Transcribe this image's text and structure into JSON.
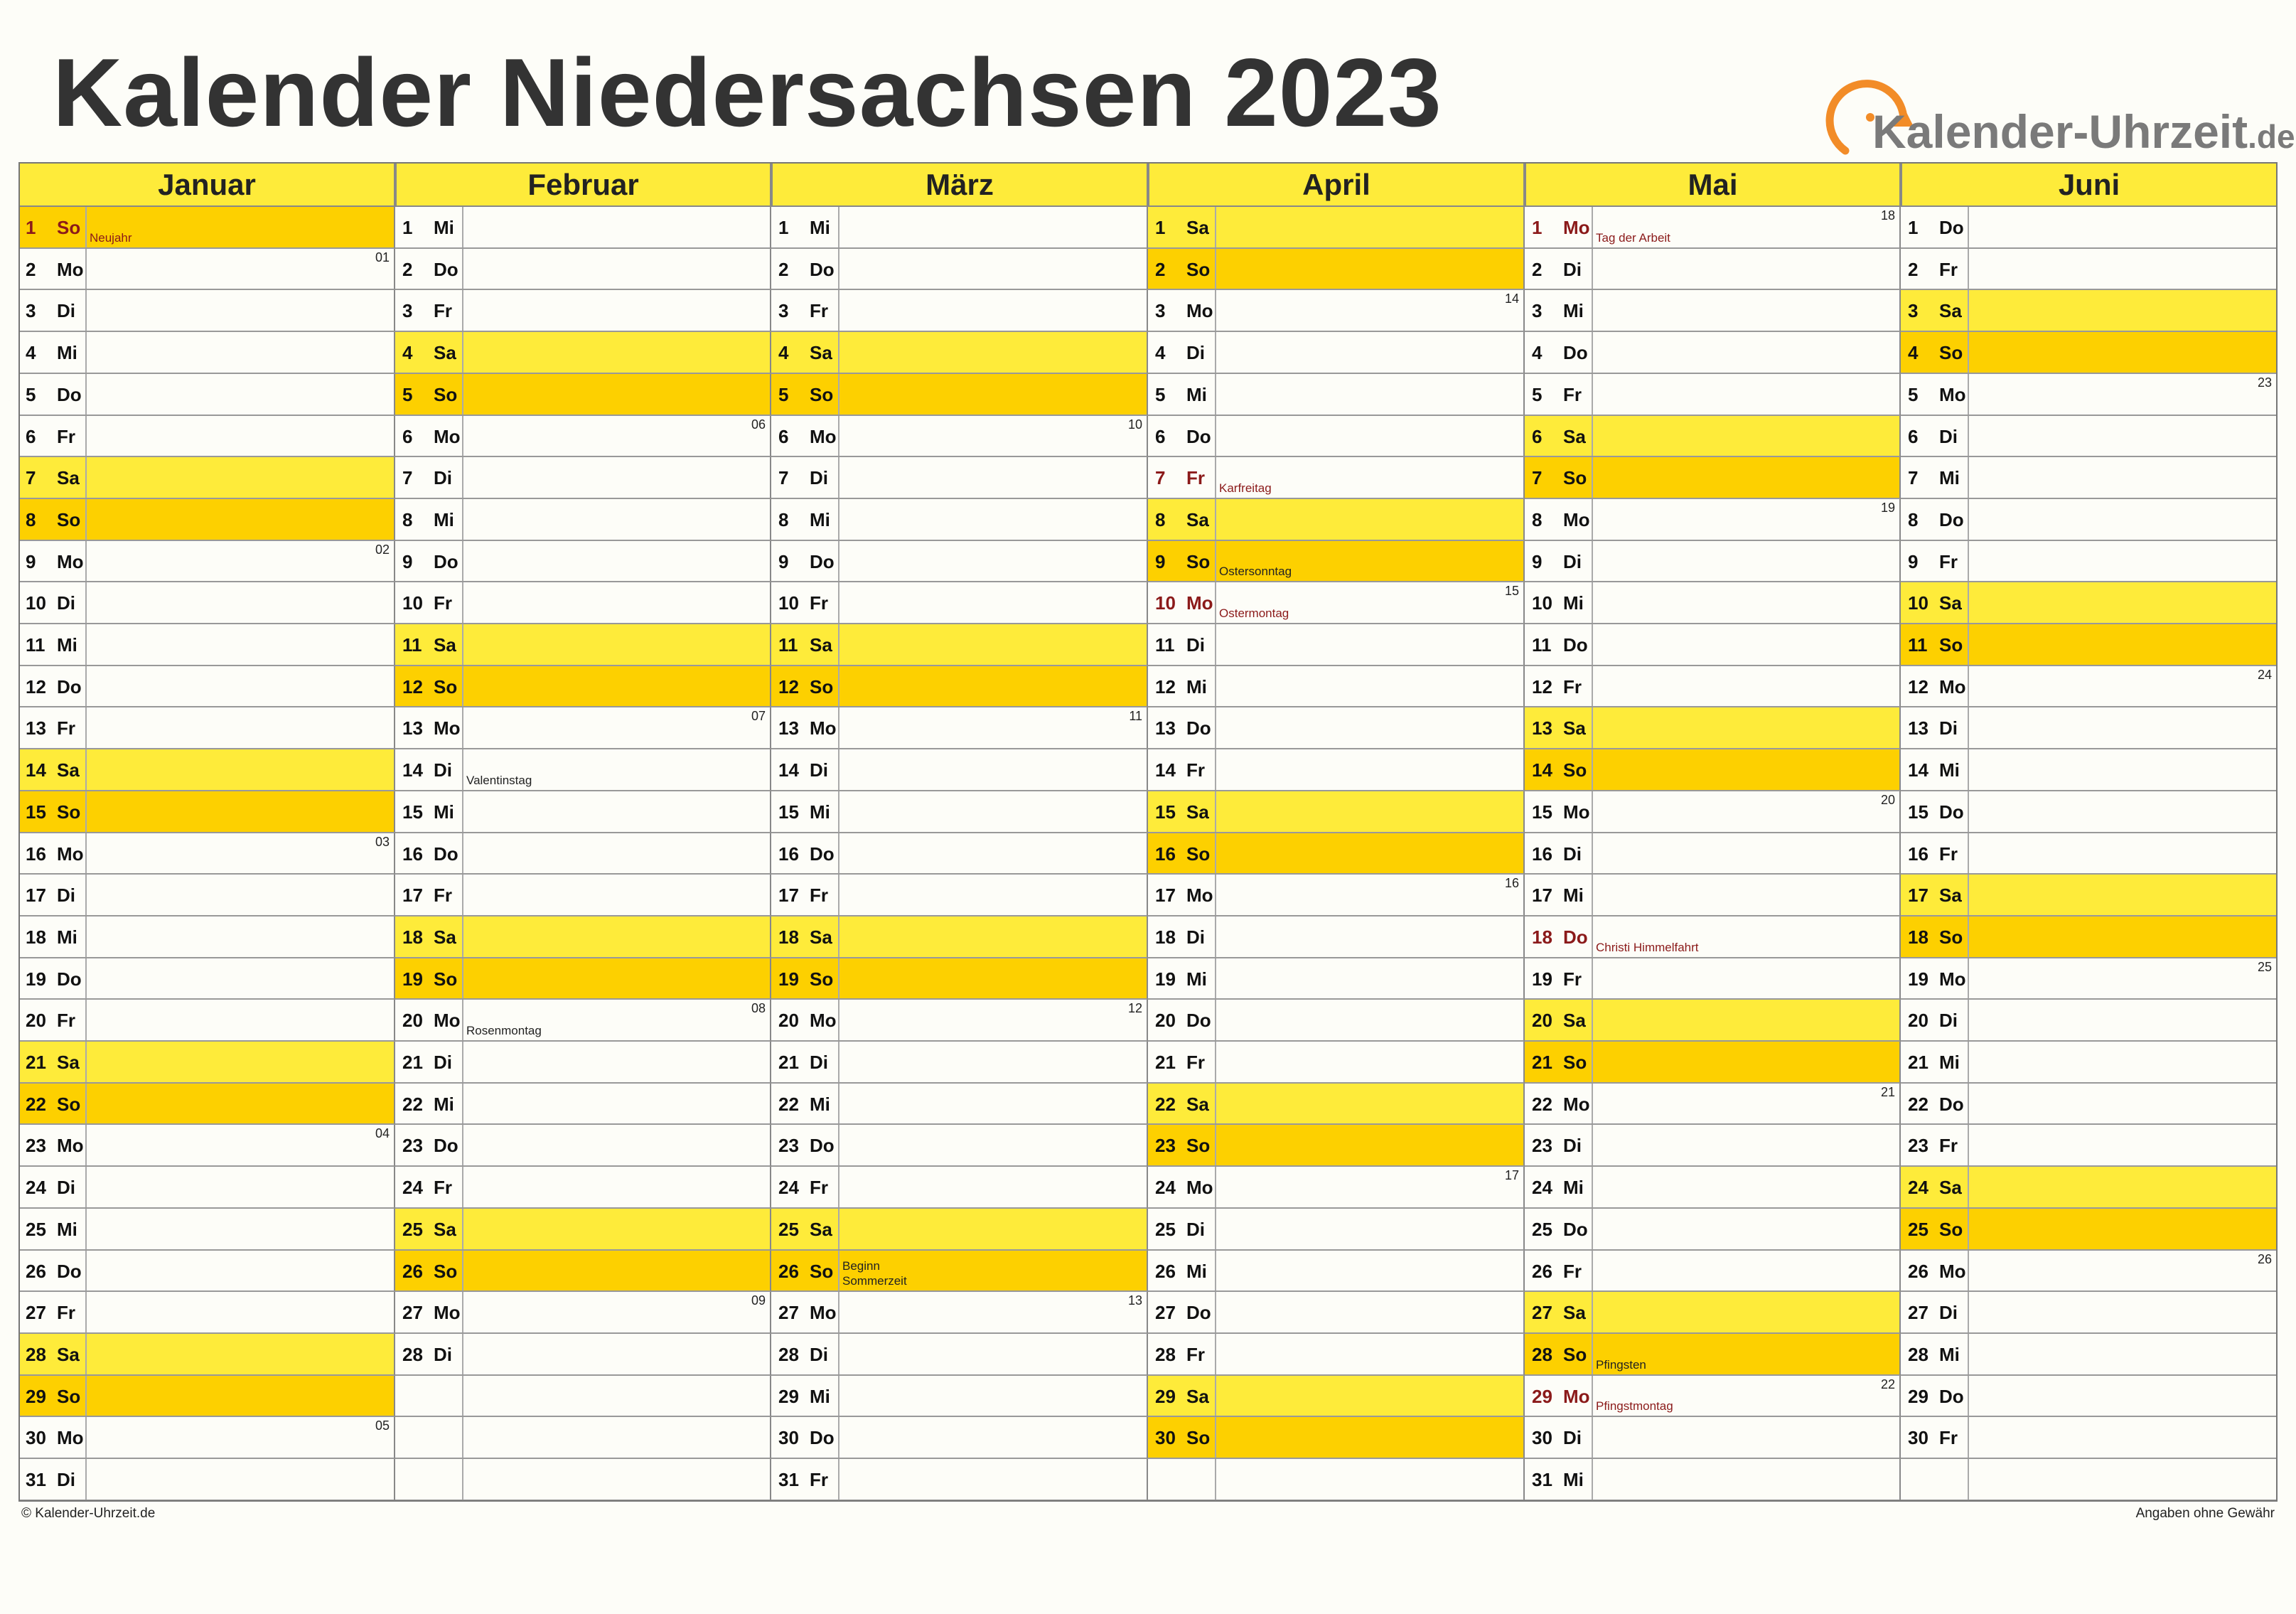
{
  "title": "Kalender Niedersachsen 2023",
  "logo": {
    "name": "Kalender-Uhrzeit",
    "tld": ".de",
    "arc_color": "#f28c28"
  },
  "colors": {
    "saturday": "#feeb3a",
    "sunday": "#fdd000",
    "header": "#feeb3a",
    "holiday_text": "#8b1a1a"
  },
  "months": [
    {
      "name": "Januar",
      "days": 31,
      "startWeekday": 6,
      "holidays": {
        "1": "Neujahr"
      },
      "info": {},
      "weeks": {
        "2": "01",
        "9": "02",
        "16": "03",
        "23": "04",
        "30": "05"
      }
    },
    {
      "name": "Februar",
      "days": 28,
      "startWeekday": 2,
      "holidays": {},
      "info": {
        "14": "Valentinstag",
        "20": "Rosenmontag"
      },
      "weeks": {
        "6": "06",
        "13": "07",
        "20": "08",
        "27": "09"
      }
    },
    {
      "name": "März",
      "days": 31,
      "startWeekday": 2,
      "holidays": {},
      "info": {
        "26": "Beginn\nSommerzeit"
      },
      "weeks": {
        "6": "10",
        "13": "11",
        "20": "12",
        "27": "13"
      }
    },
    {
      "name": "April",
      "days": 30,
      "startWeekday": 5,
      "holidays": {
        "7": "Karfreitag",
        "10": "Ostermontag"
      },
      "info": {
        "9": "Ostersonntag"
      },
      "weeks": {
        "3": "14",
        "10": "15",
        "17": "16",
        "24": "17"
      }
    },
    {
      "name": "Mai",
      "days": 31,
      "startWeekday": 0,
      "holidays": {
        "1": "Tag der Arbeit",
        "18": "Christi Himmelfahrt",
        "29": "Pfingstmontag"
      },
      "info": {
        "28": "Pfingsten"
      },
      "weeks": {
        "1": "18",
        "8": "19",
        "15": "20",
        "22": "21",
        "29": "22"
      }
    },
    {
      "name": "Juni",
      "days": 30,
      "startWeekday": 3,
      "holidays": {},
      "info": {},
      "weeks": {
        "5": "23",
        "12": "24",
        "19": "25",
        "26": "26"
      }
    }
  ],
  "weekdays": [
    "Mo",
    "Di",
    "Mi",
    "Do",
    "Fr",
    "Sa",
    "So"
  ],
  "footer": {
    "left": "© Kalender-Uhrzeit.de",
    "right": "Angaben ohne Gewähr"
  }
}
